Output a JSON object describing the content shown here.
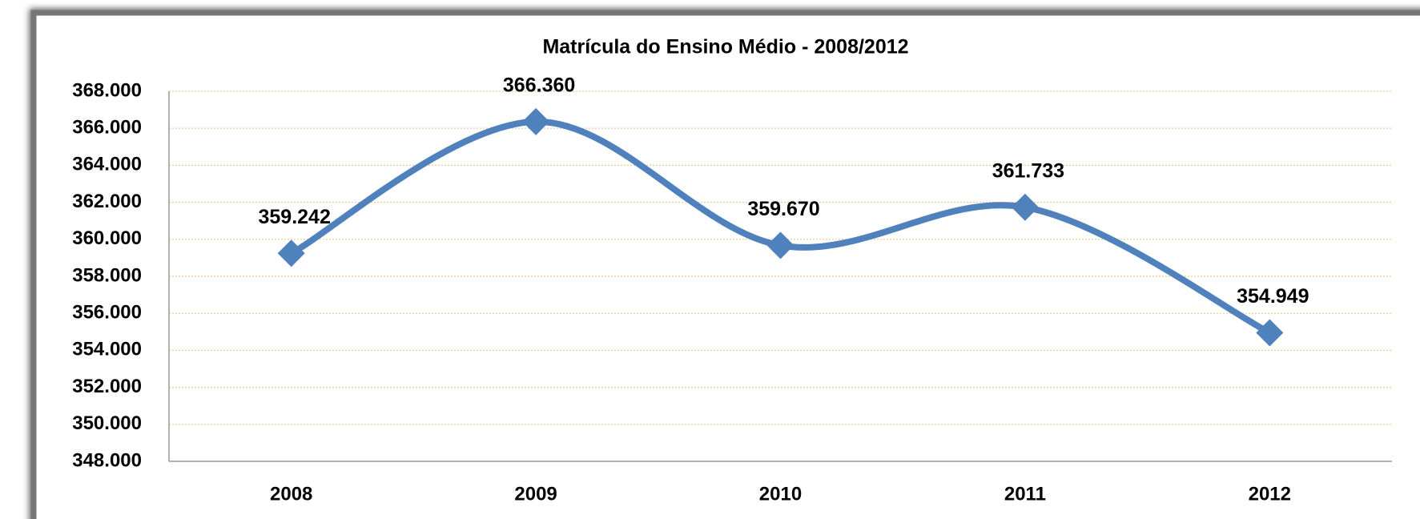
{
  "chart_data": {
    "type": "line",
    "title": "Matrícula do Ensino Médio - 2008/2012",
    "categories": [
      "2008",
      "2009",
      "2010",
      "2011",
      "2012"
    ],
    "values": [
      359242,
      366360,
      359670,
      361733,
      354949
    ],
    "value_labels": [
      "359.242",
      "366.360",
      "359.670",
      "361.733",
      "354.949"
    ],
    "color": "#4f81bd",
    "ylim": [
      348000,
      368000
    ],
    "yticks": [
      {
        "value": 348000,
        "label": "348.000"
      },
      {
        "value": 350000,
        "label": "350.000"
      },
      {
        "value": 352000,
        "label": "352.000"
      },
      {
        "value": 354000,
        "label": "354.000"
      },
      {
        "value": 356000,
        "label": "356.000"
      },
      {
        "value": 358000,
        "label": "358.000"
      },
      {
        "value": 360000,
        "label": "360.000"
      },
      {
        "value": 362000,
        "label": "362.000"
      },
      {
        "value": 364000,
        "label": "364.000"
      },
      {
        "value": 366000,
        "label": "366.000"
      },
      {
        "value": 368000,
        "label": "368.000"
      }
    ],
    "grid": true
  }
}
